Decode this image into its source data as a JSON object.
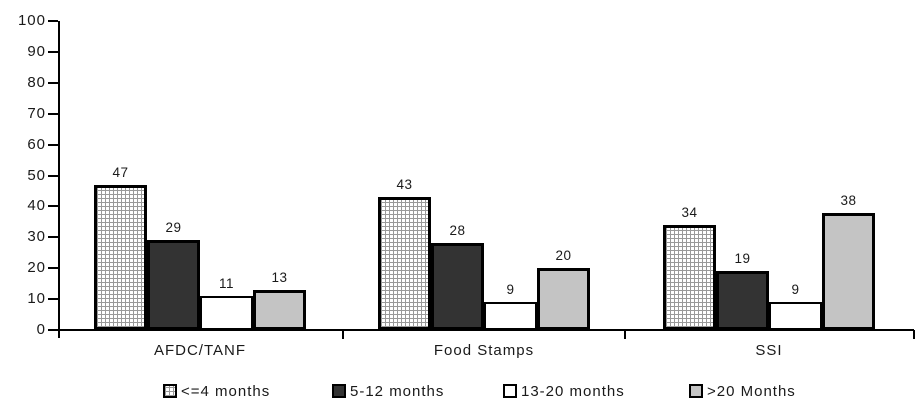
{
  "chart_data": {
    "type": "bar",
    "title": "",
    "categories": [
      "AFDC/TANF",
      "Food Stamps",
      "SSI"
    ],
    "series": [
      {
        "name": "<=4 months",
        "pattern": "crosshatch",
        "color": "#ffffff",
        "values": [
          47,
          43,
          34
        ]
      },
      {
        "name": "5-12 months",
        "pattern": "solid",
        "color": "#333333",
        "values": [
          29,
          28,
          19
        ]
      },
      {
        "name": "13-20 months",
        "pattern": "solid",
        "color": "#ffffff",
        "values": [
          11,
          9,
          9
        ]
      },
      {
        "name": ">20 Months",
        "pattern": "solid",
        "color": "#c4c4c4",
        "values": [
          13,
          20,
          38
        ]
      }
    ],
    "xlabel": "",
    "ylabel": "",
    "ylim": [
      0,
      100
    ],
    "yticks": [
      0,
      10,
      20,
      30,
      40,
      50,
      60,
      70,
      80,
      90,
      100
    ],
    "grid": false,
    "legend_position": "bottom",
    "bar_value_labels_shown": true,
    "axis_color": "#000000",
    "text_color": "#1a1a1a",
    "crosshatch_line_color": "#999999"
  }
}
